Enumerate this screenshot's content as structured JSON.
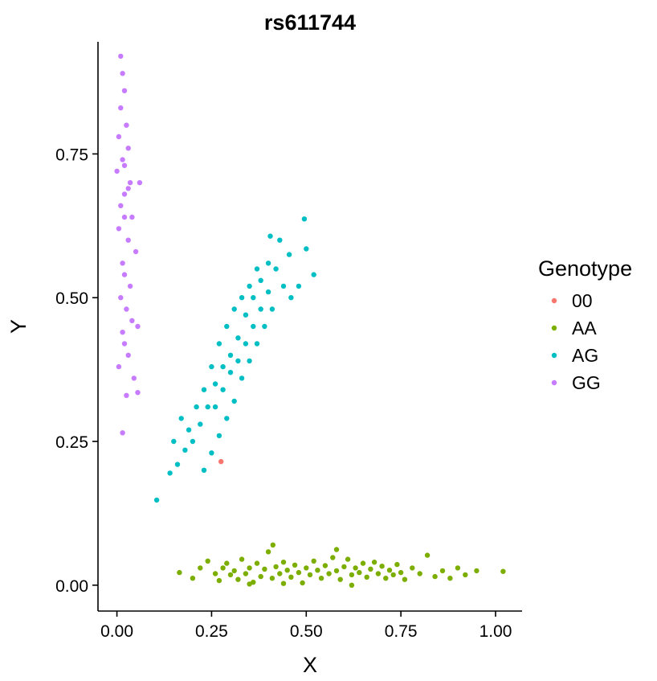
{
  "chart_data": {
    "type": "scatter",
    "title": "rs611744",
    "xlabel": "X",
    "ylabel": "Y",
    "xlim": [
      -0.05,
      1.07
    ],
    "ylim": [
      -0.045,
      0.945
    ],
    "x_ticks": [
      0.0,
      0.25,
      0.5,
      0.75,
      1.0
    ],
    "x_tick_labels": [
      "0.00",
      "0.25",
      "0.50",
      "0.75",
      "1.00"
    ],
    "y_ticks": [
      0.0,
      0.25,
      0.5,
      0.75
    ],
    "y_tick_labels": [
      "0.00",
      "0.25",
      "0.50",
      "0.75"
    ],
    "grid": false,
    "legend": {
      "title": "Genotype",
      "position": "right"
    },
    "series": [
      {
        "name": "00",
        "color": "#F8766D",
        "points": [
          [
            0.275,
            0.215
          ]
        ]
      },
      {
        "name": "AA",
        "color": "#7CAE00",
        "points": [
          [
            0.165,
            0.022
          ],
          [
            0.2,
            0.012
          ],
          [
            0.22,
            0.03
          ],
          [
            0.24,
            0.042
          ],
          [
            0.26,
            0.02
          ],
          [
            0.27,
            0.008
          ],
          [
            0.28,
            0.03
          ],
          [
            0.29,
            0.038
          ],
          [
            0.3,
            0.018
          ],
          [
            0.31,
            0.025
          ],
          [
            0.32,
            0.01
          ],
          [
            0.33,
            0.045
          ],
          [
            0.34,
            0.02
          ],
          [
            0.35,
            0.03
          ],
          [
            0.36,
            0.005
          ],
          [
            0.37,
            0.038
          ],
          [
            0.38,
            0.015
          ],
          [
            0.39,
            0.028
          ],
          [
            0.4,
            0.058
          ],
          [
            0.41,
            0.012
          ],
          [
            0.42,
            0.032
          ],
          [
            0.43,
            0.02
          ],
          [
            0.44,
            0.04
          ],
          [
            0.45,
            0.026
          ],
          [
            0.46,
            0.014
          ],
          [
            0.47,
            0.035
          ],
          [
            0.48,
            0.022
          ],
          [
            0.49,
            0.004
          ],
          [
            0.5,
            0.03
          ],
          [
            0.51,
            0.018
          ],
          [
            0.52,
            0.042
          ],
          [
            0.53,
            0.026
          ],
          [
            0.54,
            0.012
          ],
          [
            0.55,
            0.034
          ],
          [
            0.56,
            0.02
          ],
          [
            0.57,
            0.048
          ],
          [
            0.58,
            0.025
          ],
          [
            0.59,
            0.01
          ],
          [
            0.6,
            0.032
          ],
          [
            0.61,
            0.045
          ],
          [
            0.62,
            0.018
          ],
          [
            0.63,
            0.03
          ],
          [
            0.64,
            0.022
          ],
          [
            0.65,
            0.038
          ],
          [
            0.66,
            0.014
          ],
          [
            0.67,
            0.028
          ],
          [
            0.68,
            0.04
          ],
          [
            0.69,
            0.02
          ],
          [
            0.7,
            0.033
          ],
          [
            0.71,
            0.012
          ],
          [
            0.72,
            0.026
          ],
          [
            0.73,
            0.018
          ],
          [
            0.74,
            0.036
          ],
          [
            0.75,
            0.022
          ],
          [
            0.76,
            0.01
          ],
          [
            0.78,
            0.03
          ],
          [
            0.8,
            0.02
          ],
          [
            0.82,
            0.052
          ],
          [
            0.84,
            0.015
          ],
          [
            0.86,
            0.025
          ],
          [
            0.88,
            0.012
          ],
          [
            0.9,
            0.03
          ],
          [
            0.92,
            0.018
          ],
          [
            0.95,
            0.025
          ],
          [
            1.02,
            0.024
          ],
          [
            0.412,
            0.07
          ],
          [
            0.58,
            0.062
          ],
          [
            0.35,
            0.002
          ],
          [
            0.62,
            0.0
          ],
          [
            0.44,
            0.003
          ]
        ]
      },
      {
        "name": "AG",
        "color": "#00BFC4",
        "points": [
          [
            0.105,
            0.148
          ],
          [
            0.14,
            0.195
          ],
          [
            0.16,
            0.21
          ],
          [
            0.18,
            0.235
          ],
          [
            0.2,
            0.25
          ],
          [
            0.22,
            0.28
          ],
          [
            0.24,
            0.31
          ],
          [
            0.26,
            0.35
          ],
          [
            0.28,
            0.38
          ],
          [
            0.3,
            0.4
          ],
          [
            0.32,
            0.43
          ],
          [
            0.34,
            0.47
          ],
          [
            0.36,
            0.5
          ],
          [
            0.38,
            0.53
          ],
          [
            0.4,
            0.56
          ],
          [
            0.42,
            0.55
          ],
          [
            0.44,
            0.52
          ],
          [
            0.46,
            0.5
          ],
          [
            0.48,
            0.52
          ],
          [
            0.5,
            0.585
          ],
          [
            0.52,
            0.54
          ],
          [
            0.495,
            0.637
          ],
          [
            0.405,
            0.607
          ],
          [
            0.43,
            0.6
          ],
          [
            0.455,
            0.575
          ],
          [
            0.23,
            0.2
          ],
          [
            0.25,
            0.23
          ],
          [
            0.27,
            0.26
          ],
          [
            0.29,
            0.29
          ],
          [
            0.31,
            0.32
          ],
          [
            0.33,
            0.36
          ],
          [
            0.35,
            0.39
          ],
          [
            0.37,
            0.42
          ],
          [
            0.39,
            0.45
          ],
          [
            0.41,
            0.48
          ],
          [
            0.19,
            0.27
          ],
          [
            0.21,
            0.31
          ],
          [
            0.23,
            0.34
          ],
          [
            0.25,
            0.38
          ],
          [
            0.27,
            0.42
          ],
          [
            0.29,
            0.45
          ],
          [
            0.31,
            0.48
          ],
          [
            0.33,
            0.5
          ],
          [
            0.35,
            0.52
          ],
          [
            0.37,
            0.55
          ],
          [
            0.15,
            0.25
          ],
          [
            0.17,
            0.29
          ],
          [
            0.26,
            0.31
          ],
          [
            0.28,
            0.34
          ],
          [
            0.3,
            0.37
          ],
          [
            0.32,
            0.39
          ],
          [
            0.34,
            0.42
          ],
          [
            0.36,
            0.45
          ],
          [
            0.38,
            0.48
          ],
          [
            0.4,
            0.51
          ]
        ]
      },
      {
        "name": "GG",
        "color": "#C77CFF",
        "points": [
          [
            0.01,
            0.92
          ],
          [
            0.015,
            0.89
          ],
          [
            0.02,
            0.86
          ],
          [
            0.01,
            0.83
          ],
          [
            0.025,
            0.8
          ],
          [
            0.005,
            0.78
          ],
          [
            0.03,
            0.76
          ],
          [
            0.015,
            0.74
          ],
          [
            0.0,
            0.72
          ],
          [
            0.035,
            0.7
          ],
          [
            0.06,
            0.7
          ],
          [
            0.02,
            0.68
          ],
          [
            0.01,
            0.66
          ],
          [
            0.04,
            0.64
          ],
          [
            0.005,
            0.62
          ],
          [
            0.03,
            0.6
          ],
          [
            0.05,
            0.58
          ],
          [
            0.015,
            0.56
          ],
          [
            0.02,
            0.54
          ],
          [
            0.035,
            0.52
          ],
          [
            0.01,
            0.5
          ],
          [
            0.025,
            0.48
          ],
          [
            0.04,
            0.46
          ],
          [
            0.015,
            0.44
          ],
          [
            0.055,
            0.45
          ],
          [
            0.02,
            0.42
          ],
          [
            0.03,
            0.4
          ],
          [
            0.005,
            0.38
          ],
          [
            0.045,
            0.36
          ],
          [
            0.025,
            0.33
          ],
          [
            0.055,
            0.335
          ],
          [
            0.015,
            0.265
          ],
          [
            0.02,
            0.73
          ],
          [
            0.03,
            0.69
          ],
          [
            0.02,
            0.64
          ]
        ]
      }
    ]
  }
}
